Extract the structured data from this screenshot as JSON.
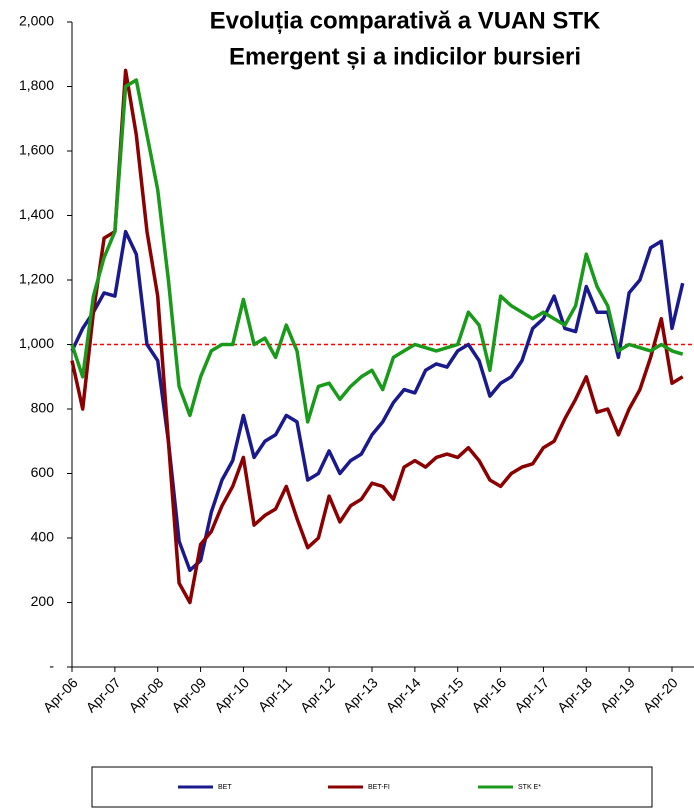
{
  "chart_data": {
    "type": "line",
    "title": [
      "Evoluția  comparativă  a VUAN STK",
      "Emergent și a indicilor bursieri"
    ],
    "categories": [
      "Apr-06",
      null,
      null,
      null,
      "Apr-07",
      null,
      null,
      null,
      "Apr-08",
      null,
      null,
      null,
      "Apr-09",
      null,
      null,
      null,
      "Apr-10",
      null,
      null,
      null,
      "Apr-11",
      null,
      null,
      null,
      "Apr-12",
      null,
      null,
      null,
      "Apr-13",
      null,
      null,
      null,
      "Apr-14",
      null,
      null,
      null,
      "Apr-15",
      null,
      null,
      null,
      "Apr-16",
      null,
      null,
      null,
      "Apr-17",
      null,
      null,
      null,
      "Apr-18",
      null,
      null,
      null,
      "Apr-19",
      null,
      null,
      null,
      "Apr-20",
      null
    ],
    "series": [
      {
        "name": "BET",
        "color": "#1a1a8c",
        "values": [
          980,
          1050,
          1100,
          1160,
          1150,
          1350,
          1280,
          1000,
          950,
          700,
          390,
          300,
          330,
          480,
          580,
          640,
          780,
          650,
          700,
          720,
          780,
          760,
          580,
          600,
          670,
          600,
          640,
          660,
          720,
          760,
          820,
          860,
          850,
          920,
          940,
          930,
          980,
          1000,
          950,
          840,
          880,
          900,
          950,
          1050,
          1080,
          1150,
          1050,
          1040,
          1180,
          1100,
          1100,
          960,
          1160,
          1200,
          1300,
          1320,
          1050,
          1190
        ]
      },
      {
        "name": "BET-FI",
        "color": "#8b0000",
        "values": [
          950,
          800,
          1100,
          1330,
          1350,
          1850,
          1650,
          1350,
          1150,
          700,
          260,
          200,
          380,
          420,
          500,
          560,
          650,
          440,
          470,
          490,
          560,
          460,
          370,
          400,
          530,
          450,
          500,
          520,
          570,
          560,
          520,
          620,
          640,
          620,
          650,
          660,
          650,
          680,
          640,
          580,
          560,
          600,
          620,
          630,
          680,
          700,
          770,
          830,
          900,
          790,
          800,
          720,
          800,
          860,
          960,
          1080,
          880,
          900
        ]
      },
      {
        "name": "STK E*",
        "color": "#1a9a1a",
        "values": [
          1000,
          900,
          1150,
          1270,
          1350,
          1800,
          1820,
          1650,
          1480,
          1200,
          870,
          780,
          900,
          980,
          1000,
          1000,
          1140,
          1000,
          1020,
          960,
          1060,
          980,
          760,
          870,
          880,
          830,
          870,
          900,
          920,
          860,
          960,
          980,
          1000,
          990,
          980,
          990,
          1000,
          1100,
          1060,
          920,
          1150,
          1120,
          1100,
          1080,
          1100,
          1080,
          1060,
          1120,
          1280,
          1180,
          1120,
          980,
          1000,
          990,
          980,
          1000,
          980,
          970
        ]
      }
    ],
    "ylim": [
      0,
      2000
    ],
    "yticks": [
      {
        "value": 0,
        "label": "-"
      },
      200,
      400,
      600,
      800,
      {
        "value": 1000,
        "label": "1,000"
      },
      {
        "value": 1200,
        "label": "1,200"
      },
      {
        "value": 1400,
        "label": "1,400"
      },
      {
        "value": 1600,
        "label": "1,600"
      },
      {
        "value": 1800,
        "label": "1,800"
      },
      {
        "value": 2000,
        "label": "2,000"
      }
    ],
    "reference_line": {
      "value": 1000,
      "color": "#ff0000"
    }
  }
}
